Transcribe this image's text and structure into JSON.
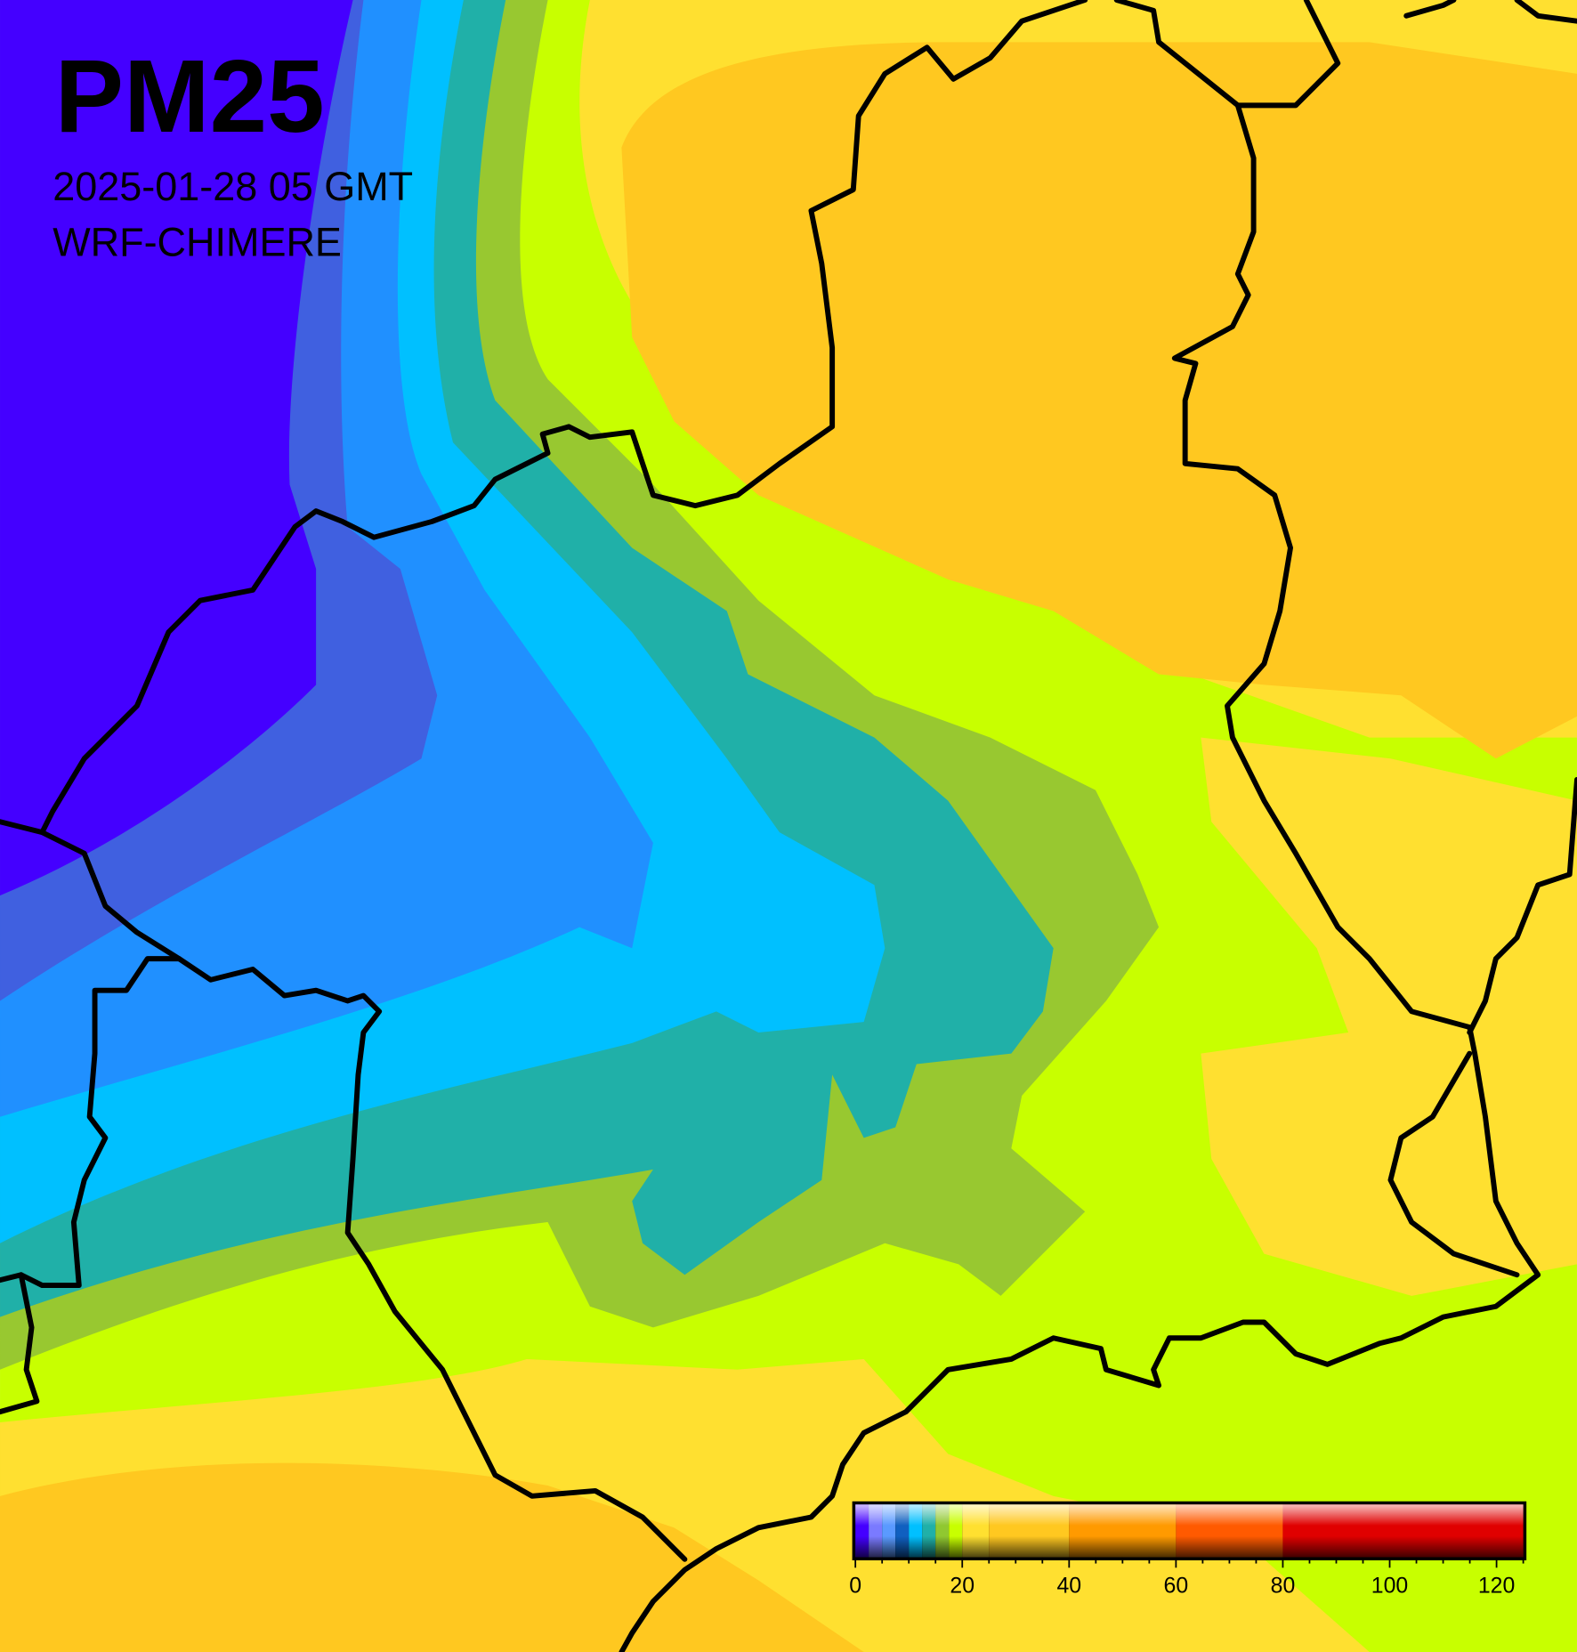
{
  "title": "PM25",
  "subtitle": "2025-01-28 05 GMT",
  "model": "WRF-CHIMERE",
  "colorbar": {
    "range": [
      0,
      125
    ],
    "levels": [
      0,
      2.5,
      5,
      7.5,
      10,
      12.5,
      15,
      17.5,
      20,
      25,
      40,
      60,
      80,
      125
    ],
    "colors": [
      "#4400ff",
      "#7a7aff",
      "#5a9aff",
      "#1060c0",
      "#00c0ff",
      "#20b0a8",
      "#90c830",
      "#c8ff00",
      "#ffe030",
      "#ffc820",
      "#ff9a00",
      "#ff5a00",
      "#e00000"
    ],
    "ticks": [
      0,
      20,
      40,
      60,
      80,
      100,
      120
    ],
    "minor_ticks": [
      5,
      10,
      15,
      25,
      30,
      35,
      45,
      50,
      55,
      65,
      70,
      75,
      85,
      90,
      95,
      105,
      110,
      115,
      125
    ]
  }
}
